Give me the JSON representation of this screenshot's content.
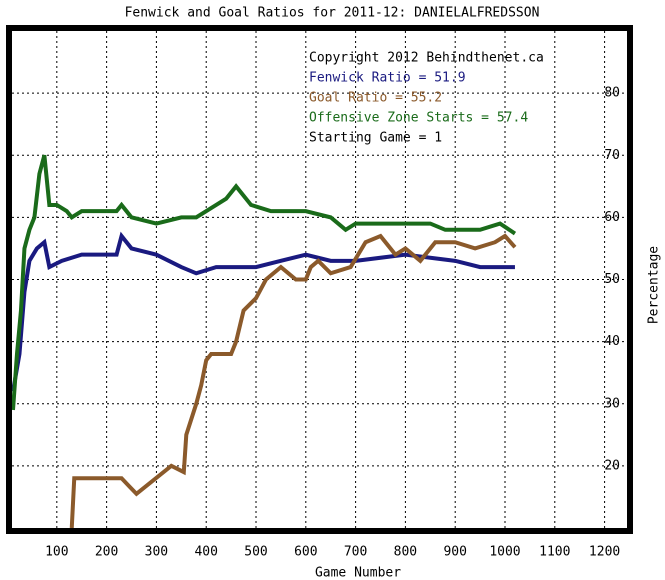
{
  "chart_data": {
    "type": "line",
    "title": "Fenwick and Goal Ratios for 2011-12: DANIELALFREDSSON",
    "xlabel": "Game Number",
    "ylabel": "Percentage",
    "xlim": [
      10,
      1245
    ],
    "ylim": [
      10,
      90
    ],
    "xticks": [
      100,
      200,
      300,
      400,
      500,
      600,
      700,
      800,
      900,
      1000,
      1100,
      1200
    ],
    "yticks": [
      20,
      30,
      40,
      50,
      60,
      70,
      80
    ],
    "grid": true,
    "annotations": [
      {
        "text": "Copyright 2012 Behindthenet.ca",
        "color": "#000000"
      },
      {
        "text": "Fenwick Ratio = 51.9",
        "color": "#1a1a80"
      },
      {
        "text": "Goal Ratio = 55.2",
        "color": "#8b5a2b"
      },
      {
        "text": "Offensive Zone Starts = 57.4",
        "color": "#1a6b1a"
      },
      {
        "text": "Starting Game = 1",
        "color": "#000000"
      }
    ],
    "series": [
      {
        "color": "#1a1a80",
        "x": [
          12,
          25,
          35,
          45,
          60,
          75,
          85,
          110,
          150,
          220,
          230,
          250,
          300,
          350,
          380,
          420,
          500,
          550,
          600,
          650,
          700,
          800,
          900,
          950,
          1020
        ],
        "values": [
          32,
          38,
          48,
          53,
          55,
          56,
          52,
          53,
          54,
          54,
          57,
          55,
          54,
          52,
          51,
          52,
          52,
          53,
          54,
          53,
          53,
          54,
          53,
          52,
          52
        ]
      },
      {
        "color": "#8b5a2b",
        "x": [
          130,
          135,
          230,
          260,
          330,
          355,
          360,
          380,
          390,
          400,
          410,
          450,
          460,
          475,
          500,
          520,
          550,
          580,
          600,
          610,
          625,
          650,
          690,
          720,
          750,
          780,
          800,
          830,
          860,
          900,
          940,
          980,
          1000,
          1020
        ],
        "values": [
          10,
          18,
          18,
          15.5,
          20,
          19,
          25,
          30,
          33,
          37,
          38,
          38,
          40,
          45,
          47,
          50,
          52,
          50,
          50,
          52,
          53,
          51,
          52,
          56,
          57,
          54,
          55,
          53,
          56,
          56,
          55,
          56,
          57,
          55.2
        ]
      },
      {
        "color": "#1a6b1a",
        "x": [
          12,
          20,
          28,
          35,
          45,
          55,
          65,
          75,
          85,
          100,
          120,
          130,
          150,
          220,
          230,
          250,
          300,
          350,
          380,
          420,
          440,
          460,
          490,
          530,
          600,
          650,
          680,
          700,
          800,
          850,
          880,
          950,
          990,
          1020
        ],
        "values": [
          29,
          38,
          45,
          55,
          58,
          60,
          67,
          70,
          62,
          62,
          61,
          60,
          61,
          61,
          62,
          60,
          59,
          60,
          60,
          62,
          63,
          65,
          62,
          61,
          61,
          60,
          58,
          59,
          59,
          59,
          58,
          58,
          59,
          57.4
        ]
      }
    ]
  }
}
